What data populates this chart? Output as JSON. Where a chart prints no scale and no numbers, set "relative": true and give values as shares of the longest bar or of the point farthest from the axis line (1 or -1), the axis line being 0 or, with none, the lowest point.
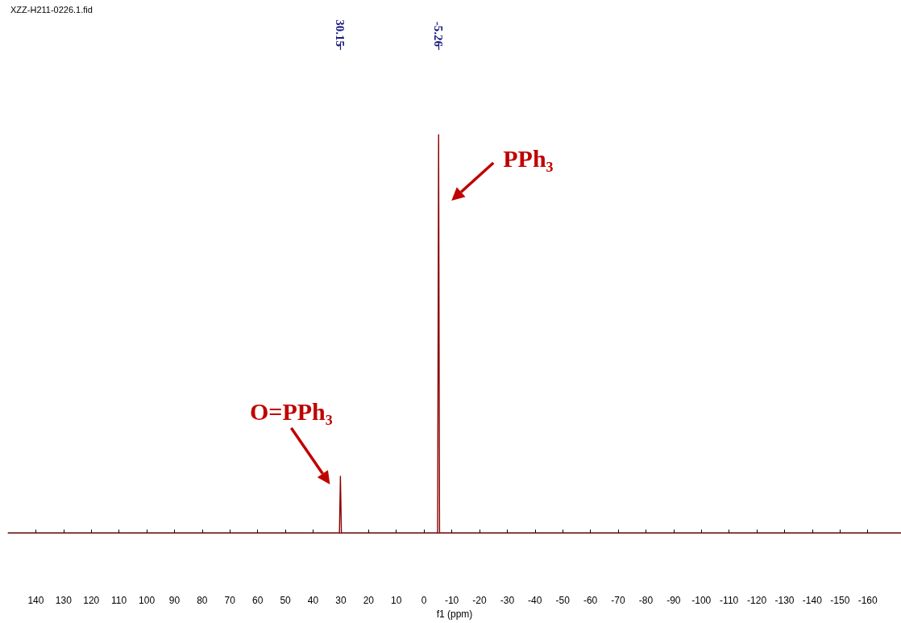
{
  "chart_data": {
    "type": "line",
    "relative": true,
    "xlabel": "f1 (ppm)",
    "x": [
      150,
      30.5,
      30.15,
      29.8,
      -4.9,
      -5.26,
      -5.6,
      -172
    ],
    "series": [
      {
        "color": "#8b0000",
        "values": [
          0,
          0,
          0.142,
          0,
          0,
          1,
          0,
          0
        ]
      }
    ],
    "xlim": [
      150,
      -172
    ],
    "xticks": [
      140,
      130,
      120,
      110,
      100,
      90,
      80,
      70,
      60,
      50,
      40,
      30,
      20,
      10,
      0,
      -10,
      -20,
      -30,
      -40,
      -50,
      -60,
      -70,
      -80,
      -90,
      -100,
      -110,
      -120,
      -130,
      -140,
      -150,
      -160
    ],
    "x2lim": [
      150,
      -172
    ],
    "x2ticks": [
      {
        "value": 30.15,
        "label": "30.15"
      },
      {
        "value": -5.26,
        "label": "-5.26"
      }
    ],
    "tick_labels": "x",
    "grid": false,
    "line_style": "solid",
    "annotations": [
      "XZZ-H211-0226.1.fid",
      {
        "text": "O=PPh₃",
        "x": 30.15,
        "y": 0.142
      },
      {
        "text": "PPh₃",
        "x": -5.26,
        "y": 1
      }
    ]
  }
}
